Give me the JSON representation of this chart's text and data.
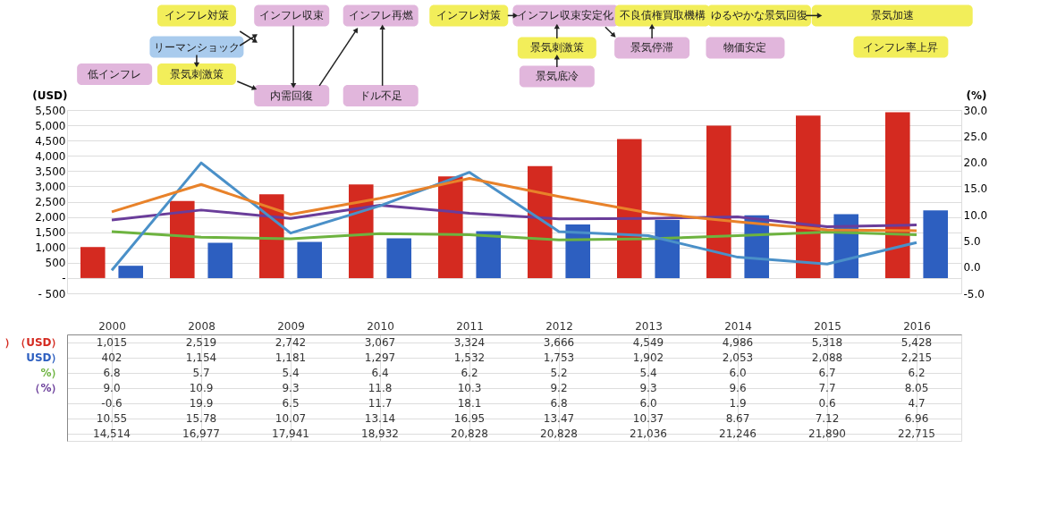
{
  "chart_data": {
    "type": "bar",
    "categories": [
      "2000",
      "2008",
      "2009",
      "2010",
      "2011",
      "2012",
      "2013",
      "2014",
      "2015",
      "2016"
    ],
    "ylabel": "(USD)",
    "y2label": "(%)",
    "ylim": [
      -500,
      5500
    ],
    "yticks": [
      {
        "value": -500,
        "label": "- 500"
      },
      {
        "value": 0,
        "label": "-"
      },
      {
        "value": 500,
        "label": "500"
      },
      {
        "value": 1000,
        "label": "1,000"
      },
      {
        "value": 1500,
        "label": "1,500"
      },
      {
        "value": 2000,
        "label": "2,000"
      },
      {
        "value": 2500,
        "label": "2,500"
      },
      {
        "value": 3000,
        "label": "3,000"
      },
      {
        "value": 3500,
        "label": "3,500"
      },
      {
        "value": 4000,
        "label": "4,000"
      },
      {
        "value": 4500,
        "label": "4,500"
      },
      {
        "value": 5000,
        "label": "5,000"
      },
      {
        "value": 5500,
        "label": "5,500"
      }
    ],
    "y2lim": [
      -5,
      30
    ],
    "y2ticks": [
      {
        "value": -5,
        "label": "-5.0"
      },
      {
        "value": 0,
        "label": "0.0"
      },
      {
        "value": 5,
        "label": "5.0"
      },
      {
        "value": 10,
        "label": "10.0"
      },
      {
        "value": 15,
        "label": "15.0"
      },
      {
        "value": 20,
        "label": "20.0"
      },
      {
        "value": 25,
        "label": "25.0"
      },
      {
        "value": 30,
        "label": "30.0"
      }
    ],
    "grid": "y",
    "legend": false,
    "line_style": "solid",
    "marker": "none",
    "data_labels": true,
    "series": [
      {
        "name": "）（USD）",
        "type": "bar",
        "color": "#d42a20",
        "values": [
          1015,
          2519,
          2742,
          3067,
          3324,
          3666,
          4549,
          4986,
          5318,
          5428
        ],
        "value_labels": [
          "1,015",
          "2,519",
          "2,742",
          "3,067",
          "3,324",
          "3,666",
          "4,549",
          "4,986",
          "5,318",
          "5,428"
        ]
      },
      {
        "name": "USD）",
        "type": "bar",
        "color": "#2d5fc0",
        "values": [
          402,
          1154,
          1181,
          1297,
          1532,
          1753,
          1902,
          2053,
          2088,
          2215
        ],
        "value_labels": [
          "402",
          "1,154",
          "1,181",
          "1,297",
          "1,532",
          "1,753",
          "1,902",
          "2,053",
          "2,088",
          "2,215"
        ]
      },
      {
        "name": "%）",
        "type": "line",
        "axis": "y2",
        "color": "#6db33f",
        "values": [
          6.8,
          5.7,
          5.4,
          6.4,
          6.2,
          5.2,
          5.4,
          6.0,
          6.7,
          6.2
        ],
        "value_labels": [
          "6.8",
          "5.7",
          "5.4",
          "6.4",
          "6.2",
          "5.2",
          "5.4",
          "6.0",
          "6.7",
          "6.2"
        ]
      },
      {
        "name": "（%）",
        "type": "line",
        "axis": "y2",
        "color": "#6a3d9a",
        "values": [
          9.0,
          10.9,
          9.3,
          11.8,
          10.3,
          9.2,
          9.3,
          9.6,
          7.7,
          8.05
        ],
        "value_labels": [
          "9.0",
          "10.9",
          "9.3",
          "11.8",
          "10.3",
          "9.2",
          "9.3",
          "9.6",
          "7.7",
          "8.05"
        ]
      },
      {
        "type": "line",
        "axis": "y2",
        "color": "#4a90c8",
        "values": [
          -0.6,
          19.9,
          6.5,
          11.7,
          18.1,
          6.8,
          6.0,
          1.9,
          0.6,
          4.7
        ],
        "value_labels": [
          "-0.6",
          "19.9",
          "6.5",
          "11.7",
          "18.1",
          "6.8",
          "6.0",
          "1.9",
          "0.6",
          "4.7"
        ]
      },
      {
        "type": "line",
        "axis": "y2",
        "color": "#e8822a",
        "values": [
          10.55,
          15.78,
          10.07,
          13.14,
          16.95,
          13.47,
          10.37,
          8.67,
          7.12,
          6.96
        ],
        "value_labels": [
          "10.55",
          "15.78",
          "10.07",
          "13.14",
          "16.95",
          "13.47",
          "10.37",
          "8.67",
          "7.12",
          "6.96"
        ]
      }
    ],
    "annotations": [
      "インフレ対策",
      "リーマンショック",
      "景気刺激策",
      "低インフレ",
      "インフレ収束",
      "内需回復",
      "インフレ再燃",
      "ドル不足",
      "インフレ対策",
      "インフレ収束安定化",
      "景気刺激策",
      "景気底冷",
      "不良債権買取機構",
      "景気停滞",
      "ゆるやかな景気回復",
      "物価安定",
      "景気加速",
      "インフレ率上昇",
      "14,514",
      "16,977",
      "17,941",
      "18,932",
      "20,828",
      "20,828",
      "21,036",
      "21,246",
      "21,890",
      "22,715"
    ]
  }
}
